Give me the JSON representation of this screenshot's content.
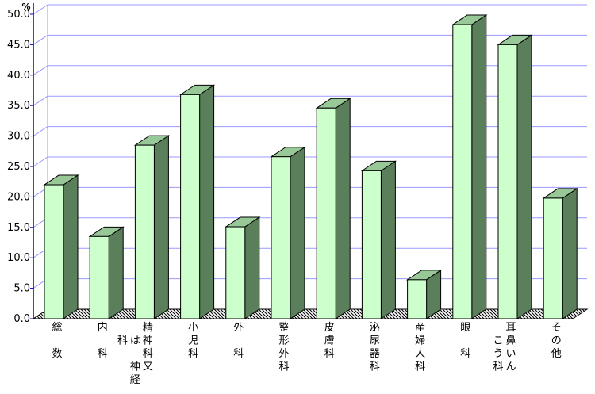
{
  "chart_data": {
    "type": "bar",
    "y_unit": "%",
    "ylim": [
      0,
      50
    ],
    "y_ticks": [
      "0.0",
      "5.0",
      "10.0",
      "15.0",
      "20.0",
      "25.0",
      "30.0",
      "35.0",
      "40.0",
      "45.0",
      "50.0"
    ],
    "grid": true,
    "categories": [
      [
        "総",
        "",
        "数"
      ],
      [
        "内",
        "",
        "科"
      ],
      [
        "精",
        "神",
        "科",
        "又",
        "は",
        "",
        "神",
        "経",
        "科"
      ],
      [
        "小",
        "児",
        "科"
      ],
      [
        "外",
        "",
        "科"
      ],
      [
        "整",
        "形",
        "外",
        "科"
      ],
      [
        "皮",
        "膚",
        "科"
      ],
      [
        "泌",
        "尿",
        "器",
        "科"
      ],
      [
        "産",
        "婦",
        "人",
        "科"
      ],
      [
        "眼",
        "",
        "科"
      ],
      [
        "耳",
        "鼻",
        "い",
        "ん",
        "こ",
        "う",
        "科"
      ],
      [
        "そ",
        "の",
        "他"
      ]
    ],
    "category_names": [
      "総数",
      "内科",
      "精神科又は神経科",
      "小児科",
      "外科",
      "整形外科",
      "皮膚科",
      "泌尿器科",
      "産婦人科",
      "眼科",
      "耳鼻いんこう科",
      "その他"
    ],
    "values": [
      22.0,
      13.5,
      28.5,
      36.8,
      15.1,
      26.6,
      34.6,
      24.3,
      6.4,
      48.3,
      45.0,
      19.8
    ],
    "colors": {
      "bar_front": "#ccffcc",
      "bar_side": "#5b7f5b",
      "bar_top": "#98c898",
      "grid": "#9999ff",
      "axis": "#0000cc"
    }
  }
}
